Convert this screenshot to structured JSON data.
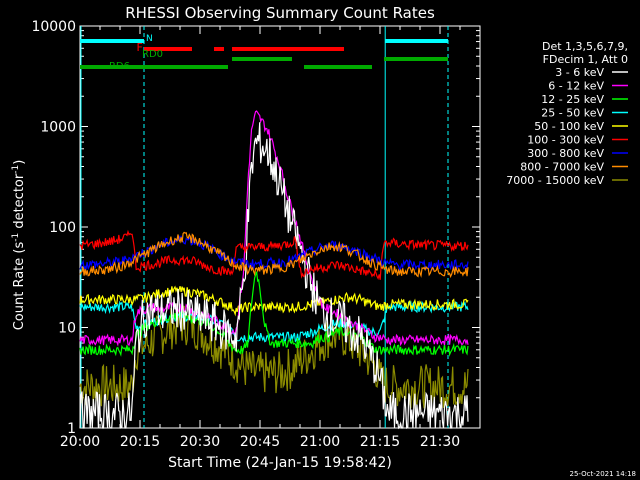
{
  "chart_data": {
    "type": "line",
    "title": "RHESSI Observing Summary Count Rates",
    "xlabel": "Start Time (24-Jan-15 19:58:42)",
    "ylabel_parts": [
      "Count Rate (s",
      "-1",
      " detector",
      "-1",
      ")"
    ],
    "y_scale": "log",
    "ylim": [
      1,
      10000
    ],
    "xlim_min": [
      0,
      100
    ],
    "x_ticks": [
      {
        "t": 0,
        "label": "20:00"
      },
      {
        "t": 15,
        "label": "20:15"
      },
      {
        "t": 30,
        "label": "20:30"
      },
      {
        "t": 45,
        "label": "20:45"
      },
      {
        "t": 60,
        "label": "21:00"
      },
      {
        "t": 75,
        "label": "21:15"
      },
      {
        "t": 90,
        "label": "21:30"
      }
    ],
    "y_ticks": [
      {
        "v": 1,
        "label": "1"
      },
      {
        "v": 10,
        "label": "10"
      },
      {
        "v": 100,
        "label": "100"
      },
      {
        "v": 1000,
        "label": "1000"
      },
      {
        "v": 10000,
        "label": "10000"
      }
    ],
    "legend_header": [
      "Det 1,3,5,6,7,9,",
      "FDecim 1, Att 0"
    ],
    "legend_position": "right",
    "series": [
      {
        "name": "3 - 6 keV",
        "color": "#ffffff",
        "x": [
          0,
          13,
          14,
          16,
          18,
          20,
          23,
          26,
          29,
          32,
          35,
          37,
          39,
          41,
          42,
          43,
          44,
          45,
          46,
          47,
          48,
          50,
          52,
          54,
          56,
          58,
          60,
          62,
          64,
          66,
          68,
          70,
          72,
          74,
          75,
          77,
          80,
          85,
          92,
          97
        ],
        "y": [
          1.4,
          1.4,
          7,
          13,
          15,
          14,
          15,
          15,
          13,
          12,
          10,
          9,
          8,
          30,
          120,
          420,
          700,
          680,
          620,
          550,
          450,
          260,
          140,
          80,
          45,
          25,
          16,
          13,
          12,
          11,
          9,
          8,
          6,
          4,
          3,
          1.4,
          1.4,
          1.4,
          1.4,
          1.4
        ]
      },
      {
        "name": "6 - 12 keV",
        "color": "#ff00ff",
        "x": [
          0,
          13,
          14,
          16,
          18,
          20,
          23,
          26,
          29,
          32,
          35,
          37,
          39,
          41,
          42,
          43,
          44,
          45,
          46,
          47,
          48,
          50,
          52,
          54,
          56,
          58,
          60,
          62,
          64,
          66,
          68,
          70,
          72,
          74,
          75,
          77,
          80,
          85,
          92,
          97
        ],
        "y": [
          7.5,
          7.5,
          14,
          15,
          16,
          15,
          16,
          16,
          14,
          13,
          11,
          10,
          9,
          40,
          300,
          1000,
          1350,
          1200,
          1050,
          900,
          700,
          400,
          200,
          110,
          55,
          30,
          18,
          15,
          14,
          12,
          11,
          10,
          9,
          8,
          8,
          7.5,
          7.5,
          7.5,
          7.5,
          7.5
        ]
      },
      {
        "name": "12 - 25 keV",
        "color": "#00ff00",
        "x": [
          0,
          13,
          14,
          16,
          18,
          20,
          23,
          26,
          29,
          32,
          35,
          37,
          39,
          41,
          42,
          43,
          44,
          45,
          46,
          47,
          48,
          50,
          52,
          54,
          56,
          58,
          60,
          62,
          64,
          66,
          68,
          70,
          72,
          74,
          75,
          77,
          80,
          85,
          92,
          97
        ],
        "y": [
          6,
          6,
          8,
          10,
          11,
          12,
          13,
          13,
          12,
          11,
          9,
          7,
          6,
          6,
          7,
          20,
          38,
          25,
          12,
          8,
          7,
          7,
          7,
          7,
          7,
          7,
          8,
          8,
          9,
          9,
          8,
          8,
          7,
          6,
          6,
          6,
          6,
          6,
          6,
          6
        ]
      },
      {
        "name": "25 - 50 keV",
        "color": "#00ffff",
        "x": [
          0,
          13,
          14,
          17,
          20,
          23,
          26,
          29,
          32,
          35,
          38,
          39,
          42,
          46,
          50,
          54,
          58,
          61,
          64,
          67,
          70,
          73,
          75,
          77,
          80,
          85,
          92,
          97
        ],
        "y": [
          16,
          16,
          10,
          11,
          12,
          13,
          13,
          13,
          12,
          11,
          10,
          8,
          8,
          8,
          8,
          8,
          9,
          10,
          11,
          11,
          10,
          9,
          9,
          16,
          16,
          16,
          16,
          16
        ]
      },
      {
        "name": "50 - 100 keV",
        "color": "#ffff00",
        "x": [
          0,
          13,
          14,
          17,
          20,
          23,
          26,
          29,
          32,
          35,
          38,
          39,
          42,
          46,
          50,
          54,
          58,
          61,
          64,
          67,
          70,
          73,
          75,
          77,
          80,
          85,
          92,
          97
        ],
        "y": [
          19,
          19,
          19,
          20,
          22,
          23,
          23,
          22,
          20,
          18,
          16,
          15,
          16,
          16,
          16,
          16,
          17,
          18,
          19,
          20,
          19,
          17,
          16,
          17,
          17,
          17,
          17,
          17
        ]
      },
      {
        "name": "100 - 300 keV",
        "color": "#ff0000",
        "x": [
          0,
          4,
          8,
          12,
          13,
          14,
          17,
          20,
          23,
          26,
          29,
          32,
          35,
          38,
          39,
          40,
          44,
          48,
          52,
          54,
          55,
          58,
          61,
          64,
          67,
          70,
          73,
          75,
          76,
          80,
          85,
          92,
          97
        ],
        "y": [
          65,
          68,
          72,
          80,
          95,
          40,
          42,
          44,
          47,
          47,
          45,
          40,
          37,
          35,
          60,
          62,
          63,
          64,
          68,
          75,
          35,
          38,
          40,
          42,
          40,
          37,
          34,
          32,
          70,
          68,
          66,
          65,
          65
        ]
      },
      {
        "name": "300 - 800 keV",
        "color": "#0000ff",
        "x": [
          0,
          5,
          10,
          14,
          17,
          20,
          23,
          26,
          29,
          32,
          35,
          38,
          40,
          42,
          45,
          48,
          51,
          54,
          57,
          60,
          63,
          66,
          69,
          72,
          75,
          77,
          80,
          85,
          92,
          97
        ],
        "y": [
          42,
          43,
          45,
          52,
          58,
          66,
          72,
          76,
          72,
          63,
          54,
          47,
          44,
          43,
          43,
          44,
          45,
          48,
          55,
          62,
          66,
          64,
          58,
          52,
          46,
          43,
          42,
          42,
          42,
          42
        ]
      },
      {
        "name": "800 - 7000 keV",
        "color": "#ff8c00",
        "x": [
          0,
          5,
          10,
          14,
          17,
          20,
          23,
          26,
          29,
          32,
          35,
          38,
          40,
          42,
          45,
          48,
          51,
          54,
          57,
          60,
          63,
          66,
          69,
          72,
          75,
          77,
          80,
          85,
          92,
          97
        ],
        "y": [
          36,
          37,
          40,
          48,
          56,
          65,
          74,
          79,
          75,
          64,
          53,
          44,
          40,
          38,
          37,
          38,
          40,
          44,
          52,
          60,
          65,
          62,
          54,
          46,
          40,
          37,
          36,
          36,
          36,
          36
        ]
      },
      {
        "name": "7000 - 15000 keV",
        "color": "#8b8b00",
        "x": [
          0,
          13,
          14,
          17,
          20,
          23,
          26,
          29,
          32,
          35,
          38,
          41,
          44,
          47,
          50,
          53,
          56,
          59,
          62,
          65,
          68,
          71,
          74,
          75,
          77,
          80,
          85,
          92,
          97
        ],
        "y": [
          2.6,
          2.6,
          6,
          7,
          8.5,
          10,
          11,
          10,
          8,
          6.5,
          5,
          4,
          3.5,
          3.5,
          3.5,
          4,
          5,
          6.5,
          8,
          8.5,
          7,
          5.5,
          4,
          3,
          2.6,
          2.6,
          2.6,
          2.6,
          2.6
        ]
      }
    ],
    "vertical_lines_min": [
      -0.3,
      16,
      76.3,
      92
    ],
    "flag_bars": [
      {
        "label": "N",
        "color": "#00ffff",
        "spans": [
          [
            0,
            16
          ],
          [
            76.3,
            92
          ]
        ]
      },
      {
        "label": "F",
        "color": "#ff0000",
        "spans": [
          [
            16,
            28
          ],
          [
            33.5,
            36
          ],
          [
            38,
            66
          ]
        ]
      },
      {
        "label": "RD0",
        "color": "#00aa00",
        "spans": [
          [
            38,
            53
          ],
          [
            76,
            92
          ]
        ]
      },
      {
        "label": "RD6",
        "color": "#00aa00",
        "spans": [
          [
            0,
            37
          ],
          [
            56,
            73
          ]
        ]
      }
    ],
    "timestamp": "25-Oct-2021 14:18"
  }
}
